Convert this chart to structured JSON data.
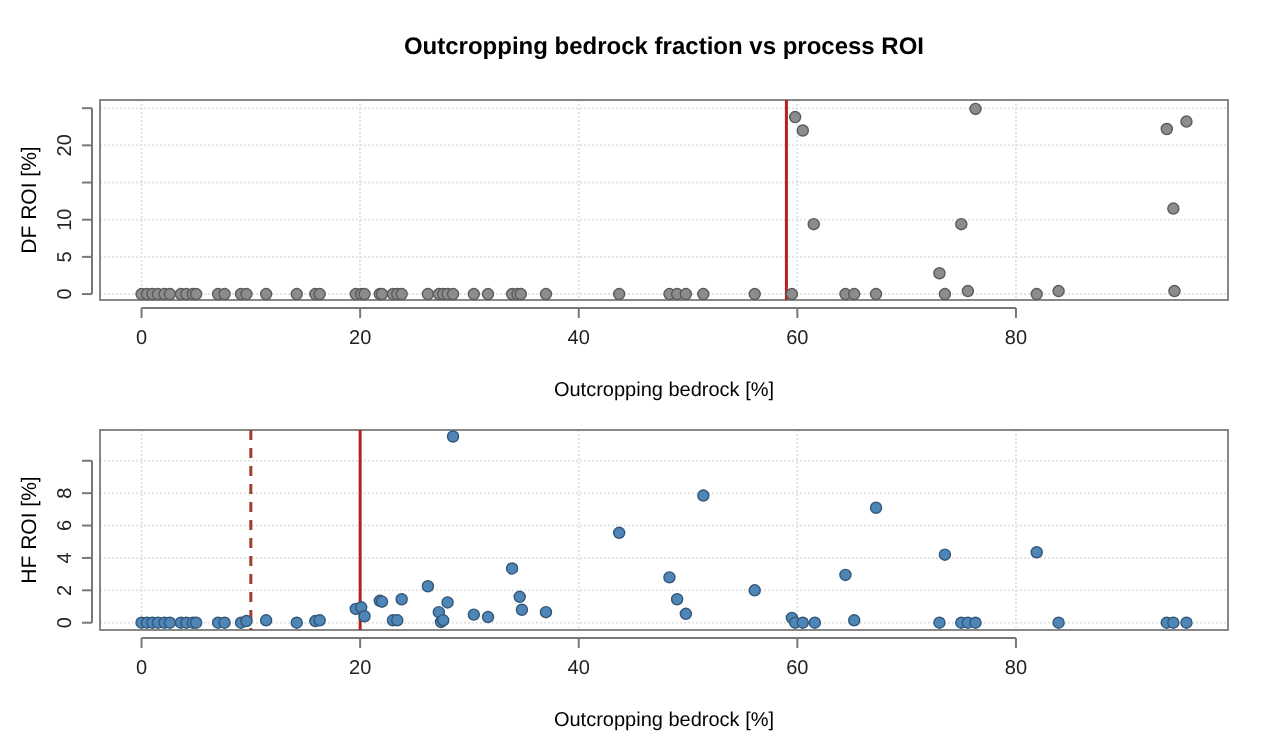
{
  "chart_data": [
    {
      "type": "scatter",
      "title": "Outcropping bedrock fraction vs process ROI",
      "xlabel": "Outcropping bedrock [%]",
      "ylabel": "DF  ROI [%]",
      "xlim": [
        -3.8,
        99.4
      ],
      "xticks": [
        0,
        20,
        40,
        60,
        80
      ],
      "ylim": [
        -0.8,
        26.1
      ],
      "yticks": [
        0,
        5,
        10,
        {
          "value": 15,
          "label": null
        },
        20,
        {
          "value": 25,
          "label": null
        }
      ],
      "grid": true,
      "marker": "circle",
      "ref_lines": [
        {
          "axis": "x",
          "value": 59,
          "color": "#b22222",
          "line_style": "solid"
        }
      ],
      "series": [
        {
          "color": "#8c8c8c",
          "x": [
            0,
            0.5,
            1.0,
            1.5,
            2.1,
            2.6,
            3.6,
            4.1,
            4.7,
            5.0,
            7.0,
            7.6,
            9.1,
            9.6,
            11.4,
            14.2,
            15.9,
            16.3,
            19.6,
            20.1,
            20.4,
            21.8,
            22.0,
            23.0,
            23.4,
            23.8,
            26.2,
            27.2,
            27.6,
            28.0,
            28.5,
            30.4,
            31.7,
            33.9,
            34.4,
            34.7,
            37.0,
            43.7,
            48.3,
            49.0,
            49.8,
            51.4,
            56.1,
            59.5,
            64.4,
            65.2,
            67.2,
            73.5,
            75.6,
            81.9,
            83.9,
            94.5,
            59.8,
            60.5,
            61.5,
            76.3,
            75.0,
            73.0,
            93.8,
            95.6,
            94.4
          ],
          "values": [
            0,
            0,
            0,
            0,
            0,
            0,
            0,
            0,
            0,
            0,
            0,
            0,
            0,
            0,
            0,
            0,
            0,
            0,
            0,
            0,
            0,
            0,
            0,
            0,
            0,
            0,
            0,
            0,
            0,
            0,
            0,
            0,
            0,
            0,
            0,
            0,
            0,
            0,
            0,
            0,
            0,
            0,
            0,
            0,
            0,
            0,
            0,
            0,
            0.4,
            0,
            0.4,
            0.4,
            23.8,
            22.0,
            9.4,
            24.9,
            9.4,
            2.8,
            22.2,
            23.2,
            11.5
          ]
        }
      ]
    },
    {
      "type": "scatter",
      "xlabel": "Outcropping bedrock [%]",
      "ylabel": "HF  ROI [%]",
      "xlim": [
        -3.8,
        99.4
      ],
      "xticks": [
        0,
        20,
        40,
        60,
        80
      ],
      "ylim": [
        -0.45,
        11.9
      ],
      "yticks": [
        0,
        2,
        4,
        6,
        8,
        {
          "value": 10,
          "label": null
        }
      ],
      "grid": true,
      "marker": "circle",
      "ref_lines": [
        {
          "axis": "x",
          "value": 10,
          "color": "#a33a30",
          "line_style": "dashed"
        },
        {
          "axis": "x",
          "value": 20,
          "color": "#b22222",
          "line_style": "solid"
        }
      ],
      "series": [
        {
          "color": "#4f86b8",
          "x": [
            0,
            0.5,
            1.0,
            1.5,
            2.1,
            2.6,
            3.6,
            4.1,
            4.7,
            5.0,
            7.0,
            7.6,
            9.1,
            9.6,
            11.4,
            14.2,
            15.9,
            16.3,
            19.6,
            20.1,
            20.4,
            21.8,
            22.0,
            23.0,
            23.4,
            23.8,
            26.2,
            27.2,
            27.4,
            27.6,
            28.0,
            28.5,
            30.4,
            31.7,
            33.9,
            34.6,
            34.8,
            37.0,
            43.7,
            48.3,
            49.0,
            49.8,
            51.4,
            56.1,
            59.5,
            59.8,
            60.5,
            61.6,
            64.4,
            65.2,
            67.2,
            73.0,
            73.5,
            75.0,
            75.6,
            76.3,
            81.9,
            83.9,
            93.8,
            94.4,
            95.6
          ],
          "values": [
            0,
            0,
            0,
            0,
            0,
            0,
            0,
            0,
            0,
            0,
            0,
            0,
            0,
            0.1,
            0.15,
            0,
            0.1,
            0.15,
            0.85,
            0.95,
            0.4,
            1.35,
            1.3,
            0.15,
            0.15,
            1.45,
            2.25,
            0.65,
            0.05,
            0.15,
            1.25,
            11.5,
            0.5,
            0.35,
            3.35,
            1.6,
            0.8,
            0.65,
            5.55,
            2.8,
            1.45,
            0.55,
            7.85,
            2.0,
            0.3,
            0,
            0,
            0,
            2.95,
            0.15,
            7.1,
            0,
            4.2,
            0,
            0,
            0,
            4.35,
            0,
            0,
            0,
            0
          ]
        }
      ]
    }
  ]
}
